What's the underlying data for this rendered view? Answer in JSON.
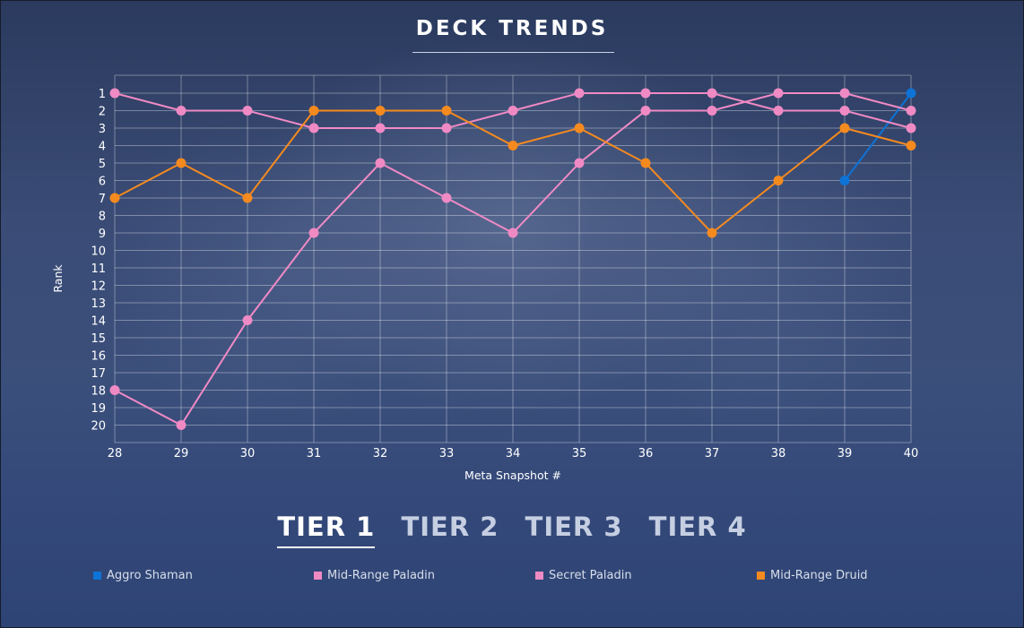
{
  "page": {
    "title": "DECK TRENDS"
  },
  "tabs": [
    {
      "label": "TIER 1",
      "active": true
    },
    {
      "label": "TIER 2",
      "active": false
    },
    {
      "label": "TIER 3",
      "active": false
    },
    {
      "label": "TIER 4",
      "active": false
    }
  ],
  "legend": [
    {
      "label": "Aggro Shaman",
      "color": "#0e73d6"
    },
    {
      "label": "Mid-Range Paladin",
      "color": "#f08ac4"
    },
    {
      "label": "Secret Paladin",
      "color": "#f08ac4"
    },
    {
      "label": "Mid-Range Druid",
      "color": "#f58a1f"
    }
  ],
  "chart_data": {
    "type": "line",
    "xlabel": "Meta Snapshot #",
    "ylabel": "Rank",
    "x": [
      28,
      29,
      30,
      31,
      32,
      33,
      34,
      35,
      36,
      37,
      38,
      39,
      40
    ],
    "ylim": [
      1,
      20
    ],
    "y_inverted": true,
    "yticks": [
      1,
      2,
      3,
      4,
      5,
      6,
      7,
      8,
      9,
      10,
      11,
      12,
      13,
      14,
      15,
      16,
      17,
      18,
      19,
      20
    ],
    "grid": true,
    "series": [
      {
        "name": "Aggro Shaman",
        "color": "#0e73d6",
        "values": [
          null,
          null,
          null,
          null,
          null,
          null,
          null,
          null,
          null,
          null,
          null,
          6,
          1
        ]
      },
      {
        "name": "Mid-Range Paladin",
        "color": "#f08ac4",
        "values": [
          1,
          2,
          2,
          3,
          3,
          3,
          2,
          1,
          1,
          1,
          2,
          2,
          3
        ]
      },
      {
        "name": "Secret Paladin",
        "color": "#f08ac4",
        "values": [
          18,
          20,
          14,
          9,
          5,
          7,
          9,
          5,
          2,
          2,
          1,
          1,
          2
        ]
      },
      {
        "name": "Mid-Range Druid",
        "color": "#f58a1f",
        "values": [
          7,
          5,
          7,
          2,
          2,
          2,
          4,
          3,
          5,
          9,
          6,
          3,
          4
        ]
      }
    ]
  }
}
